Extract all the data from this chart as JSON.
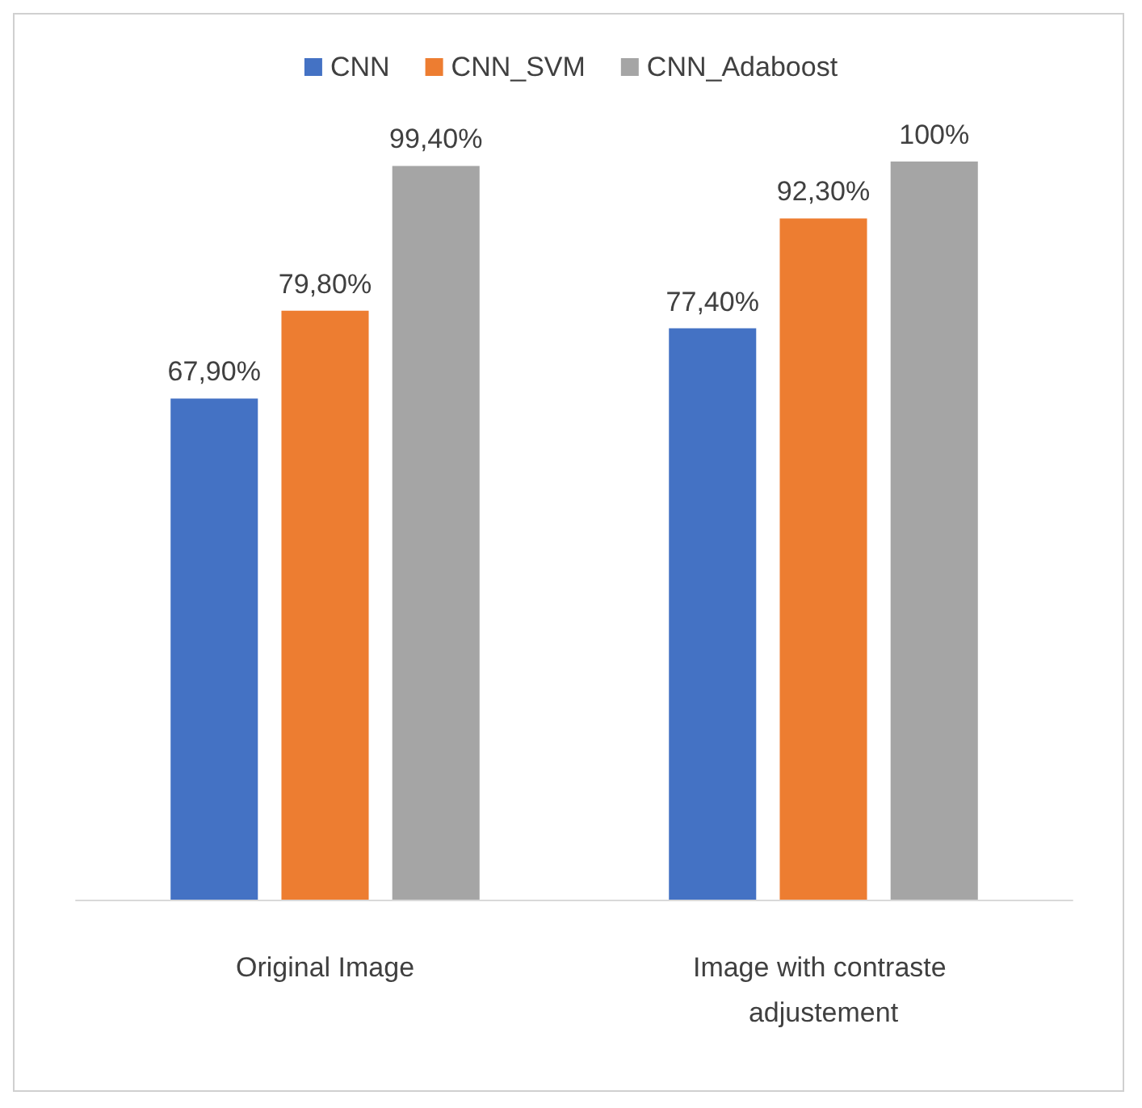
{
  "chart_data": {
    "type": "bar",
    "categories": [
      "Original Image",
      "Image with contraste adjustement"
    ],
    "series": [
      {
        "name": "CNN",
        "color": "#4472c4",
        "values": [
          67.9,
          77.4
        ],
        "value_labels": [
          "67,90%",
          "77,40%"
        ]
      },
      {
        "name": "CNN_SVM",
        "color": "#ed7d31",
        "values": [
          79.8,
          92.3
        ],
        "value_labels": [
          "79,80%",
          "92,30%"
        ]
      },
      {
        "name": "CNN_Adaboost",
        "color": "#a5a5a5",
        "values": [
          99.4,
          100
        ],
        "value_labels": [
          "99,40%",
          "100%"
        ]
      }
    ],
    "legend": "top",
    "tick_labels": "x"
  }
}
